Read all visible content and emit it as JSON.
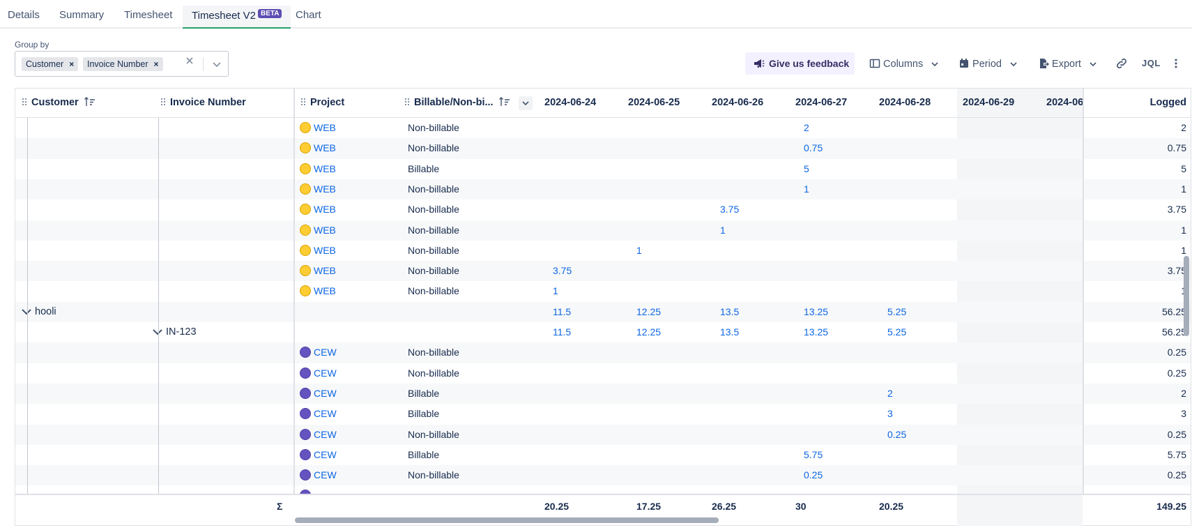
{
  "tabs": [
    {
      "label": "Details"
    },
    {
      "label": "Summary"
    },
    {
      "label": "Timesheet"
    },
    {
      "label": "Timesheet V2",
      "badge": "BETA",
      "active": true
    },
    {
      "label": "Chart"
    }
  ],
  "groupby": {
    "label": "Group by",
    "chips": [
      "Customer",
      "Invoice Number"
    ],
    "remove_glyph": "×"
  },
  "toolbar": {
    "feedback_label": "Give us feedback",
    "columns_label": "Columns",
    "period_label": "Period",
    "export_label": "Export",
    "jql_label": "JQL"
  },
  "grid": {
    "headers": {
      "customer": "Customer",
      "invoice": "Invoice Number",
      "project": "Project",
      "billable": "Billable/Non-bi...",
      "dates": [
        "2024-06-24",
        "2024-06-25",
        "2024-06-26",
        "2024-06-27",
        "2024-06-28",
        "2024-06-29",
        "2024-06"
      ],
      "logged": "Logged"
    },
    "rows": [
      {
        "type": "entry",
        "icon": "web",
        "project": "WEB",
        "billable": "Non-billable",
        "values": {
          "3": "2"
        },
        "logged": "2"
      },
      {
        "type": "entry",
        "icon": "web",
        "project": "WEB",
        "billable": "Non-billable",
        "values": {
          "3": "0.75"
        },
        "logged": "0.75"
      },
      {
        "type": "entry",
        "icon": "web",
        "project": "WEB",
        "billable": "Billable",
        "values": {
          "3": "5"
        },
        "logged": "5"
      },
      {
        "type": "entry",
        "icon": "web",
        "project": "WEB",
        "billable": "Non-billable",
        "values": {
          "3": "1"
        },
        "logged": "1"
      },
      {
        "type": "entry",
        "icon": "web",
        "project": "WEB",
        "billable": "Non-billable",
        "values": {
          "2": "3.75"
        },
        "logged": "3.75"
      },
      {
        "type": "entry",
        "icon": "web",
        "project": "WEB",
        "billable": "Non-billable",
        "values": {
          "2": "1"
        },
        "logged": "1"
      },
      {
        "type": "entry",
        "icon": "web",
        "project": "WEB",
        "billable": "Non-billable",
        "values": {
          "1": "1"
        },
        "logged": "1"
      },
      {
        "type": "entry",
        "icon": "web",
        "project": "WEB",
        "billable": "Non-billable",
        "values": {
          "0": "3.75"
        },
        "logged": "3.75"
      },
      {
        "type": "entry",
        "icon": "web",
        "project": "WEB",
        "billable": "Non-billable",
        "values": {
          "0": "1"
        },
        "logged": "1"
      },
      {
        "type": "customer",
        "label": "hooli",
        "values": {
          "0": "11.5",
          "1": "12.25",
          "2": "13.5",
          "3": "13.25",
          "4": "5.25"
        },
        "logged": "56.25"
      },
      {
        "type": "invoice",
        "label": "IN-123",
        "values": {
          "0": "11.5",
          "1": "12.25",
          "2": "13.5",
          "3": "13.25",
          "4": "5.25"
        },
        "logged": "56.25"
      },
      {
        "type": "entry",
        "icon": "cew",
        "project": "CEW",
        "billable": "Non-billable",
        "values": {},
        "logged": "0.25"
      },
      {
        "type": "entry",
        "icon": "cew",
        "project": "CEW",
        "billable": "Non-billable",
        "values": {},
        "logged": "0.25"
      },
      {
        "type": "entry",
        "icon": "cew",
        "project": "CEW",
        "billable": "Billable",
        "values": {
          "4": "2"
        },
        "logged": "2"
      },
      {
        "type": "entry",
        "icon": "cew",
        "project": "CEW",
        "billable": "Billable",
        "values": {
          "4": "3"
        },
        "logged": "3"
      },
      {
        "type": "entry",
        "icon": "cew",
        "project": "CEW",
        "billable": "Non-billable",
        "values": {
          "4": "0.25"
        },
        "logged": "0.25"
      },
      {
        "type": "entry",
        "icon": "cew",
        "project": "CEW",
        "billable": "Billable",
        "values": {
          "3": "5.75"
        },
        "logged": "5.75"
      },
      {
        "type": "entry",
        "icon": "cew",
        "project": "CEW",
        "billable": "Non-billable",
        "values": {
          "3": "0.25"
        },
        "logged": "0.25"
      },
      {
        "type": "entry",
        "icon": "cew",
        "project": "",
        "billable": "",
        "values": {},
        "logged": ""
      }
    ],
    "footer": {
      "sigma": "Σ",
      "totals": [
        "20.25",
        "17.25",
        "26.25",
        "30",
        "20.25",
        "",
        ""
      ],
      "logged": "149.25"
    }
  },
  "colors": {
    "accent": "#22a06b",
    "link": "#0c66e4",
    "badge": "#5e4db2",
    "feedback_bg": "#f3f0ff"
  }
}
